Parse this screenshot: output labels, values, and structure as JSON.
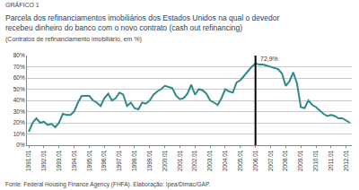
{
  "chart_data": {
    "type": "line",
    "header": "GRÁFICO 1",
    "title": [
      "Parcela dos refinanciamentos imobiliários dos Estados Unidos na qual o devedor",
      "recebeu dinheiro do banco com o novo contrato (cash out refinancing)"
    ],
    "subtitle": "(Contratos de refinanciamento imobiliário, em %)",
    "source": "Fonte: Federal Housing Finance Agency (FHFA). Elaboração: Ipea/Dimac/GAP.",
    "categories": [
      "1991.01",
      null,
      null,
      null,
      "1992.01",
      null,
      null,
      null,
      "1993.01",
      null,
      null,
      null,
      "1994.01",
      null,
      null,
      null,
      "1995.01",
      null,
      null,
      null,
      "1996.01",
      null,
      null,
      null,
      "1997.01",
      null,
      null,
      null,
      "1998.01",
      null,
      null,
      null,
      "1999.01",
      null,
      null,
      null,
      "2000.01",
      null,
      null,
      null,
      "2001.01",
      null,
      null,
      null,
      "2002.01",
      null,
      null,
      null,
      "2003.01",
      null,
      null,
      null,
      "2004.01",
      null,
      null,
      null,
      "2005.01",
      null,
      null,
      null,
      "2006.01",
      null,
      null,
      null,
      "2007.01",
      null,
      null,
      null,
      "2008.01",
      null,
      null,
      null,
      "2009.01",
      null,
      null,
      null,
      "2010.01",
      null,
      null,
      null,
      "2011.01",
      null,
      null,
      null,
      "2012.01",
      null
    ],
    "values": [
      12,
      20,
      24,
      20,
      21,
      18,
      19,
      16,
      20,
      28,
      27,
      27,
      30,
      38,
      44,
      44,
      44,
      40,
      38,
      35,
      42,
      46,
      40,
      42,
      47,
      45,
      35,
      38,
      33,
      32,
      38,
      37,
      40,
      45,
      48,
      50,
      53,
      52,
      51,
      44,
      41,
      42,
      46,
      54,
      45,
      50,
      49,
      46,
      40,
      38,
      36,
      42,
      50,
      48,
      47,
      56,
      58,
      62,
      66,
      70,
      72.9,
      72,
      72,
      71,
      70,
      69,
      68,
      64,
      53,
      57,
      65,
      55,
      34,
      33,
      40,
      36,
      34,
      31,
      28,
      26,
      27,
      26,
      24,
      24,
      22,
      20
    ],
    "color": "#2e8b8b",
    "ylim": [
      0,
      80
    ],
    "yticks": [
      {
        "value": 0,
        "label": "0%"
      },
      {
        "value": 10,
        "label": "10%"
      },
      {
        "value": 20,
        "label": "20%"
      },
      {
        "value": 30,
        "label": "30%"
      },
      {
        "value": 40,
        "label": "40%"
      },
      {
        "value": 50,
        "label": "50%"
      },
      {
        "value": 60,
        "label": "60%"
      },
      {
        "value": 70,
        "label": "70%"
      },
      {
        "value": 80,
        "label": "80%"
      }
    ],
    "grid": true,
    "annotations": [
      {
        "text": "72,9%",
        "x": "2006.01",
        "y": 72.9
      }
    ]
  }
}
